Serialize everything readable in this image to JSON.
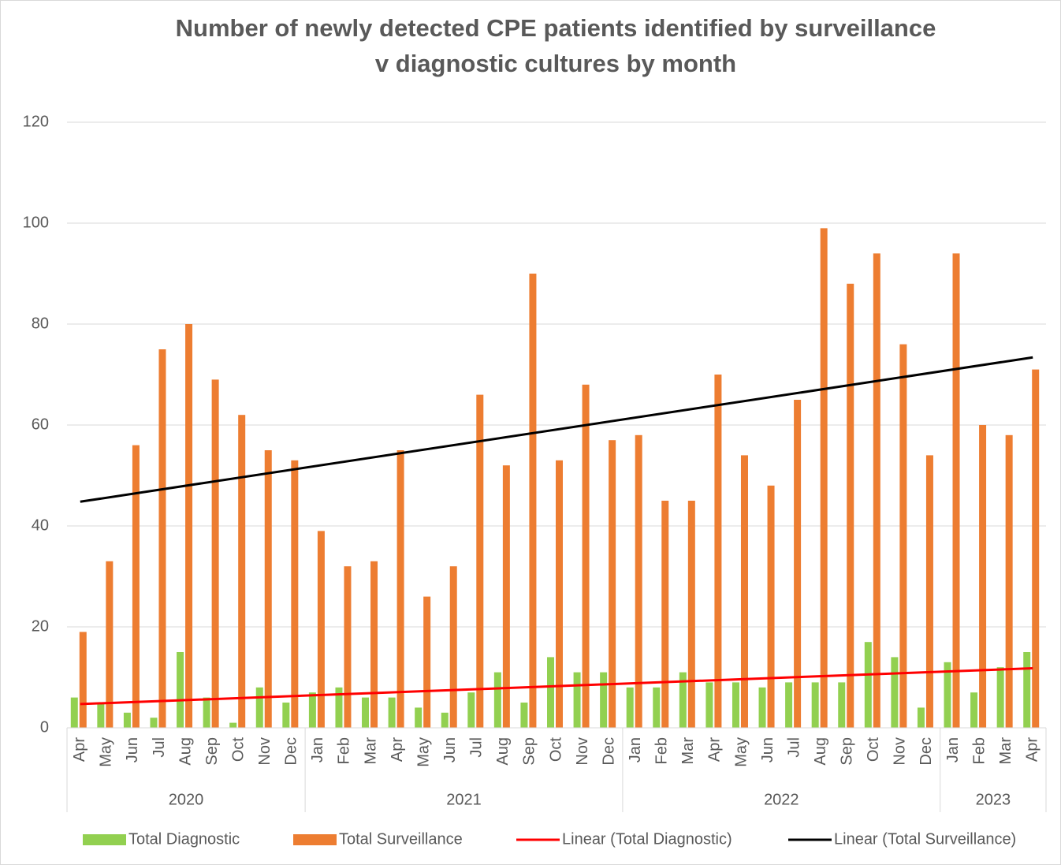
{
  "chart_data": {
    "type": "bar",
    "title": [
      "Number of newly detected CPE patients identified by surveillance",
      "v diagnostic cultures by month"
    ],
    "groups": [
      {
        "label": "2020",
        "categories": [
          "Apr",
          "May",
          "Jun",
          "Jul",
          "Aug",
          "Sep",
          "Oct",
          "Nov",
          "Dec"
        ]
      },
      {
        "label": "2021",
        "categories": [
          "Jan",
          "Feb",
          "Mar",
          "Apr",
          "May",
          "Jun",
          "Jul",
          "Aug",
          "Sep",
          "Oct",
          "Nov",
          "Dec"
        ]
      },
      {
        "label": "2022",
        "categories": [
          "Jan",
          "Feb",
          "Mar",
          "Apr",
          "May",
          "Jun",
          "Jul",
          "Aug",
          "Sep",
          "Oct",
          "Nov",
          "Dec"
        ]
      },
      {
        "label": "2023",
        "categories": [
          "Jan",
          "Feb",
          "Mar",
          "Apr"
        ]
      }
    ],
    "series": [
      {
        "name": "Total Diagnostic",
        "color": "#92d050",
        "values": [
          6,
          5,
          3,
          2,
          15,
          6,
          1,
          8,
          5,
          7,
          8,
          6,
          6,
          4,
          3,
          7,
          11,
          5,
          14,
          11,
          11,
          8,
          8,
          11,
          9,
          9,
          8,
          9,
          9,
          9,
          17,
          14,
          4,
          13,
          7,
          12,
          15
        ]
      },
      {
        "name": "Total Surveillance",
        "color": "#ed7d31",
        "values": [
          19,
          33,
          56,
          75,
          80,
          69,
          62,
          55,
          53,
          39,
          32,
          33,
          55,
          26,
          32,
          66,
          52,
          90,
          53,
          68,
          57,
          58,
          45,
          45,
          70,
          54,
          48,
          65,
          99,
          88,
          94,
          76,
          54,
          94,
          60,
          58,
          71
        ]
      }
    ],
    "trendlines": [
      {
        "name": "Linear (Total Diagnostic)",
        "color": "#ff0000",
        "values": [
          4.7,
          11.8
        ]
      },
      {
        "name": "Linear (Total Surveillance)",
        "color": "#000000",
        "values": [
          44.8,
          73.4
        ]
      }
    ],
    "ylim": [
      0,
      120
    ],
    "yticks": [
      0,
      20,
      40,
      60,
      80,
      100,
      120
    ],
    "grid": true,
    "legend": "bottom"
  }
}
